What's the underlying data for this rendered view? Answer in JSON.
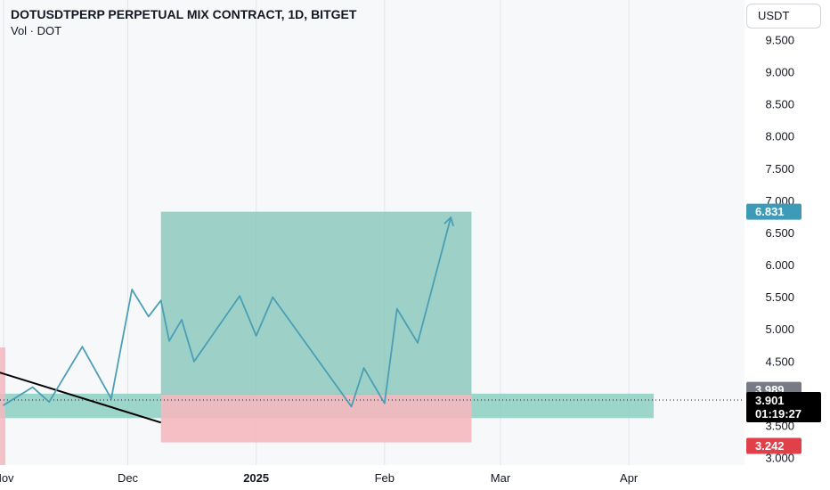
{
  "header": {
    "title": "DOTUSDTPERP PERPETUAL MIX CONTRACT, 1D, BITGET",
    "subtitle": "Vol · DOT",
    "currency_button": "USDT"
  },
  "colors": {
    "line": "#4a9fb5",
    "profit_zone": "#7fc4b6",
    "loss_zone": "#f4b8bf",
    "entry_band": "#8ccfc0",
    "target_badge": "#3d9bb8",
    "stop_badge": "#e0404a",
    "entry_badge": "#787b86",
    "price_badge": "#000000",
    "trendline": "#000000"
  },
  "chart_data": {
    "type": "line",
    "title": "DOTUSDTPERP PERPETUAL MIX CONTRACT, 1D, BITGET",
    "xlabel": "",
    "ylabel": "",
    "ylim": [
      3.0,
      9.5
    ],
    "grid": true,
    "y_ticks": [
      "3.000",
      "3.500",
      "4.000",
      "4.500",
      "5.000",
      "5.500",
      "6.000",
      "6.500",
      "7.000",
      "7.500",
      "8.000",
      "8.500",
      "9.000",
      "9.500"
    ],
    "x_ticks": [
      {
        "label": "Nov",
        "date": "2024-11-01"
      },
      {
        "label": "Dec",
        "date": "2024-12-01"
      },
      {
        "label": "2025",
        "date": "2025-01-01",
        "bold": true
      },
      {
        "label": "Feb",
        "date": "2025-02-01"
      },
      {
        "label": "Mar",
        "date": "2025-03-01"
      },
      {
        "label": "Apr",
        "date": "2025-04-01"
      }
    ],
    "series": [
      {
        "points": [
          {
            "x": "2024-11-01",
            "y": 3.82
          },
          {
            "x": "2024-11-08",
            "y": 4.1
          },
          {
            "x": "2024-11-12",
            "y": 3.87
          },
          {
            "x": "2024-11-20",
            "y": 4.73
          },
          {
            "x": "2024-11-27",
            "y": 3.92
          },
          {
            "x": "2024-12-02",
            "y": 5.62
          },
          {
            "x": "2024-12-06",
            "y": 5.2
          },
          {
            "x": "2024-12-09",
            "y": 5.45
          },
          {
            "x": "2024-12-11",
            "y": 4.82
          },
          {
            "x": "2024-12-14",
            "y": 5.15
          },
          {
            "x": "2024-12-17",
            "y": 4.5
          },
          {
            "x": "2024-12-28",
            "y": 5.52
          },
          {
            "x": "2025-01-01",
            "y": 4.9
          },
          {
            "x": "2025-01-05",
            "y": 5.5
          },
          {
            "x": "2025-01-24",
            "y": 3.8
          },
          {
            "x": "2025-01-27",
            "y": 4.4
          },
          {
            "x": "2025-02-01",
            "y": 3.85
          },
          {
            "x": "2025-02-04",
            "y": 5.32
          },
          {
            "x": "2025-02-09",
            "y": 4.79
          },
          {
            "x": "2025-02-17",
            "y": 6.74
          }
        ]
      }
    ],
    "annotations": {
      "trendline": [
        {
          "x": "2024-10-31",
          "y": 4.33
        },
        {
          "x": "2024-12-09",
          "y": 3.55
        }
      ],
      "profit_zone": {
        "x_start": "2024-12-09",
        "x_end": "2025-02-22",
        "y_from": 3.989,
        "y_to": 6.83
      },
      "loss_zone": {
        "x_start": "2024-12-09",
        "x_end": "2025-02-22",
        "y_from": 3.242,
        "y_to": 3.989
      },
      "entry_band": {
        "x_start": "2024-10-31",
        "x_end": "2025-04-07",
        "y_from": 3.62,
        "y_to": 4.0
      },
      "current_price_line": 3.901
    },
    "badges": {
      "target": "6.831",
      "entry": "3.989",
      "price": "3.901",
      "countdown": "01:19:27",
      "stop": "3.242"
    }
  }
}
